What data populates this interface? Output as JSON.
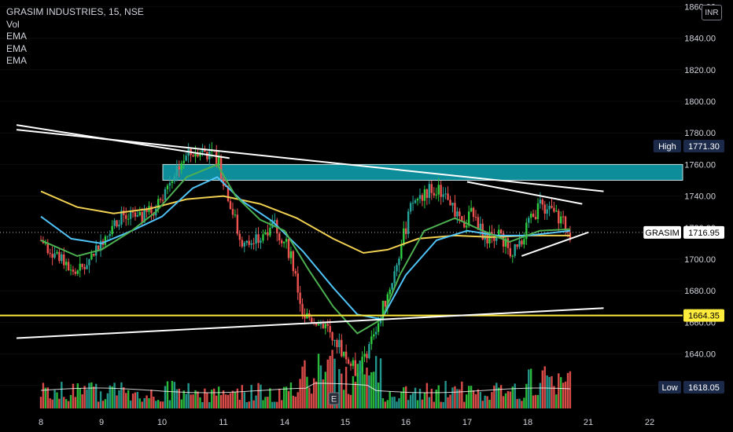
{
  "legend": {
    "symbol": "GRASIM INDUSTRIES, 15, NSE",
    "indicators": [
      "Vol",
      "EMA",
      "EMA",
      "EMA"
    ]
  },
  "currency": "INR",
  "colors": {
    "up": "#26a69a",
    "up_bright": "#2ecc40",
    "down": "#ef5350",
    "ema_fast": "#4caf50",
    "ema_mid": "#4fc3f7",
    "ema_slow": "#f0d050",
    "zone": "#0f9aa8",
    "support": "#ffeb3b",
    "trendline": "#ffffff"
  },
  "chart_data": {
    "type": "candlestick",
    "y_axis": {
      "ticks": [
        "1860.00",
        "1840.00",
        "1820.00",
        "1800.00",
        "1780.00",
        "1760.00",
        "1740.00",
        "1720.00",
        "1700.00",
        "1680.00",
        "1660.00",
        "1640.00",
        "1620.00"
      ],
      "range": [
        1607,
        1862
      ]
    },
    "x_axis": {
      "ticks": [
        "8",
        "9",
        "10",
        "11",
        "14",
        "15",
        "16",
        "17",
        "18",
        "21",
        "22"
      ]
    },
    "tags": {
      "high": {
        "label": "High",
        "value": "1771.30"
      },
      "last": {
        "label": "GRASIM",
        "value": "1716.95"
      },
      "support": {
        "label": "",
        "value": "1664.35"
      },
      "low": {
        "label": "Low",
        "value": "1618.05"
      }
    },
    "resistance_zone": [
      1750,
      1760
    ],
    "support_level": 1664.35,
    "session_marker": "E",
    "price_path": [
      {
        "x": 8,
        "y": 1712
      },
      {
        "x": 8.35,
        "y": 1700
      },
      {
        "x": 8.6,
        "y": 1690
      },
      {
        "x": 8.9,
        "y": 1706
      },
      {
        "x": 9.1,
        "y": 1718
      },
      {
        "x": 9.3,
        "y": 1727
      },
      {
        "x": 9.6,
        "y": 1724
      },
      {
        "x": 9.9,
        "y": 1733
      },
      {
        "x": 10.3,
        "y": 1762
      },
      {
        "x": 10.6,
        "y": 1770
      },
      {
        "x": 10.9,
        "y": 1764
      },
      {
        "x": 11.1,
        "y": 1738
      },
      {
        "x": 11.3,
        "y": 1708
      },
      {
        "x": 11.6,
        "y": 1712
      },
      {
        "x": 11.8,
        "y": 1725
      },
      {
        "x": 12.1,
        "y": 1703
      },
      {
        "x": 12.3,
        "y": 1665
      },
      {
        "x": 12.6,
        "y": 1660
      },
      {
        "x": 12.8,
        "y": 1653
      },
      {
        "x": 13.0,
        "y": 1638
      },
      {
        "x": 13.2,
        "y": 1628
      },
      {
        "x": 13.5,
        "y": 1655
      },
      {
        "x": 13.8,
        "y": 1690
      },
      {
        "x": 14.1,
        "y": 1735
      },
      {
        "x": 14.4,
        "y": 1745
      },
      {
        "x": 14.7,
        "y": 1740
      },
      {
        "x": 14.9,
        "y": 1720
      },
      {
        "x": 15.1,
        "y": 1730
      },
      {
        "x": 15.3,
        "y": 1712
      },
      {
        "x": 15.5,
        "y": 1718
      },
      {
        "x": 15.7,
        "y": 1705
      },
      {
        "x": 15.9,
        "y": 1713
      },
      {
        "x": 16.2,
        "y": 1735
      },
      {
        "x": 16.5,
        "y": 1727
      },
      {
        "x": 16.7,
        "y": 1717
      }
    ],
    "ema_fast": [
      {
        "x": 8,
        "y": 1712
      },
      {
        "x": 8.6,
        "y": 1702
      },
      {
        "x": 9.0,
        "y": 1706
      },
      {
        "x": 9.5,
        "y": 1718
      },
      {
        "x": 9.9,
        "y": 1730
      },
      {
        "x": 10.4,
        "y": 1752
      },
      {
        "x": 10.9,
        "y": 1760
      },
      {
        "x": 11.2,
        "y": 1740
      },
      {
        "x": 11.6,
        "y": 1725
      },
      {
        "x": 12.0,
        "y": 1718
      },
      {
        "x": 12.4,
        "y": 1693
      },
      {
        "x": 12.8,
        "y": 1670
      },
      {
        "x": 13.2,
        "y": 1653
      },
      {
        "x": 13.6,
        "y": 1662
      },
      {
        "x": 13.9,
        "y": 1690
      },
      {
        "x": 14.3,
        "y": 1718
      },
      {
        "x": 14.8,
        "y": 1726
      },
      {
        "x": 15.2,
        "y": 1719
      },
      {
        "x": 15.7,
        "y": 1711
      },
      {
        "x": 16.2,
        "y": 1718
      },
      {
        "x": 16.7,
        "y": 1719
      }
    ],
    "ema_mid": [
      {
        "x": 8,
        "y": 1727
      },
      {
        "x": 8.5,
        "y": 1713
      },
      {
        "x": 9.0,
        "y": 1710
      },
      {
        "x": 9.5,
        "y": 1718
      },
      {
        "x": 10.0,
        "y": 1727
      },
      {
        "x": 10.5,
        "y": 1745
      },
      {
        "x": 10.9,
        "y": 1752
      },
      {
        "x": 11.3,
        "y": 1737
      },
      {
        "x": 11.8,
        "y": 1724
      },
      {
        "x": 12.3,
        "y": 1705
      },
      {
        "x": 12.8,
        "y": 1682
      },
      {
        "x": 13.2,
        "y": 1665
      },
      {
        "x": 13.6,
        "y": 1662
      },
      {
        "x": 14.0,
        "y": 1690
      },
      {
        "x": 14.5,
        "y": 1712
      },
      {
        "x": 15.0,
        "y": 1718
      },
      {
        "x": 15.5,
        "y": 1715
      },
      {
        "x": 16.0,
        "y": 1715
      },
      {
        "x": 16.7,
        "y": 1718
      }
    ],
    "ema_slow": [
      {
        "x": 8,
        "y": 1743
      },
      {
        "x": 8.6,
        "y": 1733
      },
      {
        "x": 9.2,
        "y": 1729
      },
      {
        "x": 9.8,
        "y": 1732
      },
      {
        "x": 10.4,
        "y": 1738
      },
      {
        "x": 11.0,
        "y": 1740
      },
      {
        "x": 11.6,
        "y": 1735
      },
      {
        "x": 12.2,
        "y": 1726
      },
      {
        "x": 12.8,
        "y": 1713
      },
      {
        "x": 13.3,
        "y": 1704
      },
      {
        "x": 13.7,
        "y": 1706
      },
      {
        "x": 14.2,
        "y": 1713
      },
      {
        "x": 14.8,
        "y": 1715
      },
      {
        "x": 15.4,
        "y": 1714
      },
      {
        "x": 16.0,
        "y": 1715
      },
      {
        "x": 16.7,
        "y": 1715
      }
    ],
    "trendlines": [
      {
        "x1": 7.6,
        "y1": 1782,
        "x2": 17.25,
        "y2": 1743
      },
      {
        "x1": 7.6,
        "y1": 1785,
        "x2": 11.1,
        "y2": 1764
      },
      {
        "x1": 7.6,
        "y1": 1650,
        "x2": 17.25,
        "y2": 1669
      },
      {
        "x1": 15.0,
        "y1": 1749,
        "x2": 16.9,
        "y2": 1735
      },
      {
        "x1": 15.9,
        "y1": 1702,
        "x2": 17.0,
        "y2": 1717
      }
    ]
  }
}
